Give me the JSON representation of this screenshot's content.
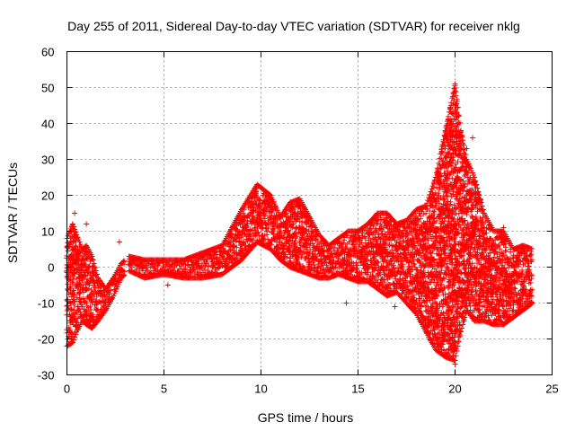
{
  "chart_data": {
    "type": "scatter",
    "title": "Day 255 of 2011, Sidereal Day-to-day VTEC variation (SDTVAR) for receiver nklg",
    "xlabel": "GPS time / hours",
    "ylabel": "SDTVAR / TECUs",
    "xlim": [
      0,
      25
    ],
    "ylim": [
      -30,
      60
    ],
    "xticks": [
      0,
      5,
      10,
      15,
      20,
      25
    ],
    "yticks": [
      -30,
      -20,
      -10,
      0,
      10,
      20,
      30,
      40,
      50,
      60
    ],
    "grid": true,
    "marker": "plus",
    "color": "#ff0000",
    "series": [
      {
        "name": "SDTVAR",
        "envelope": {
          "x": [
            0.0,
            0.3,
            0.5,
            0.8,
            1.0,
            1.3,
            1.6,
            2.0,
            2.4,
            2.8,
            3.2,
            4.0,
            5.0,
            6.0,
            7.0,
            8.0,
            9.0,
            9.8,
            10.5,
            11.0,
            11.5,
            12.0,
            12.5,
            13.0,
            13.5,
            14.0,
            14.5,
            15.0,
            15.5,
            16.0,
            16.5,
            17.0,
            17.5,
            18.0,
            18.5,
            19.0,
            19.5,
            20.0,
            20.3,
            20.6,
            21.0,
            21.5,
            22.0,
            22.5,
            23.0,
            23.5,
            24.0
          ],
          "upper": [
            8.0,
            12.0,
            9.0,
            5.0,
            6.0,
            3.0,
            -3.0,
            -6.0,
            -3.0,
            1.0,
            3.0,
            2.0,
            2.0,
            2.0,
            4.0,
            6.0,
            16.0,
            23.0,
            20.0,
            14.0,
            18.0,
            19.0,
            14.0,
            9.0,
            6.0,
            8.0,
            10.0,
            10.0,
            12.0,
            15.0,
            15.0,
            12.0,
            13.0,
            16.0,
            17.0,
            25.0,
            38.0,
            51.0,
            38.0,
            30.0,
            25.0,
            15.0,
            10.0,
            10.0,
            5.0,
            6.0,
            5.0
          ],
          "lower": [
            -22.0,
            -21.0,
            -18.0,
            -15.0,
            -16.0,
            -17.0,
            -15.0,
            -12.0,
            -8.0,
            -3.0,
            -1.0,
            -3.0,
            -2.0,
            -3.0,
            -3.0,
            -2.0,
            2.0,
            7.0,
            5.0,
            2.0,
            0.0,
            -1.0,
            -2.0,
            -3.0,
            -3.0,
            -2.0,
            -3.0,
            -4.0,
            -4.0,
            -6.0,
            -8.0,
            -7.0,
            -10.0,
            -13.0,
            -18.0,
            -23.0,
            -25.0,
            -26.0,
            -18.0,
            -12.0,
            -15.0,
            -15.0,
            -16.0,
            -16.0,
            -14.0,
            -12.0,
            -10.0
          ]
        },
        "outliers": [
          {
            "x": 0.4,
            "y": 15.0
          },
          {
            "x": 1.0,
            "y": 12.0
          },
          {
            "x": 2.7,
            "y": 7.0
          },
          {
            "x": 5.2,
            "y": -5.0
          },
          {
            "x": 14.4,
            "y": -10.0
          },
          {
            "x": 16.9,
            "y": -11.0
          },
          {
            "x": 20.6,
            "y": 33.0
          },
          {
            "x": 20.9,
            "y": 36.0
          },
          {
            "x": 22.5,
            "y": 11.0
          },
          {
            "x": 20.0,
            "y": -27.0
          }
        ]
      }
    ]
  }
}
